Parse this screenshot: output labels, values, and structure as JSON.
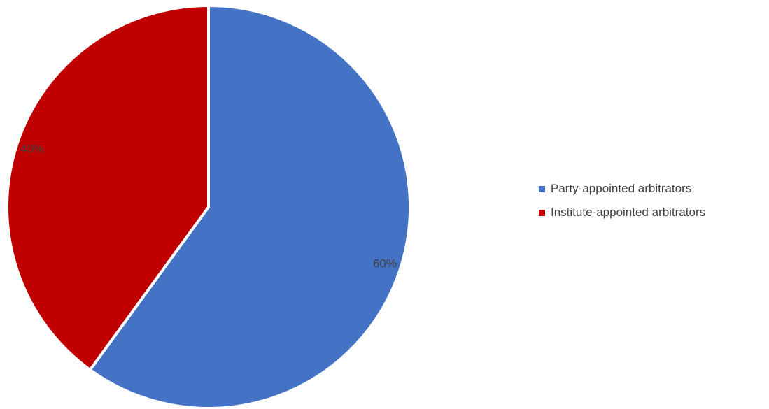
{
  "chart_data": {
    "type": "pie",
    "title": "",
    "categories": [
      "Party-appointed arbitrators",
      "Institute-appointed arbitrators"
    ],
    "values": [
      60,
      40
    ],
    "data_labels": [
      "60%",
      "40%"
    ],
    "colors": [
      "#4472C4",
      "#C00000"
    ],
    "legend_position": "right",
    "start_angle_deg": 0,
    "direction": "clockwise"
  }
}
